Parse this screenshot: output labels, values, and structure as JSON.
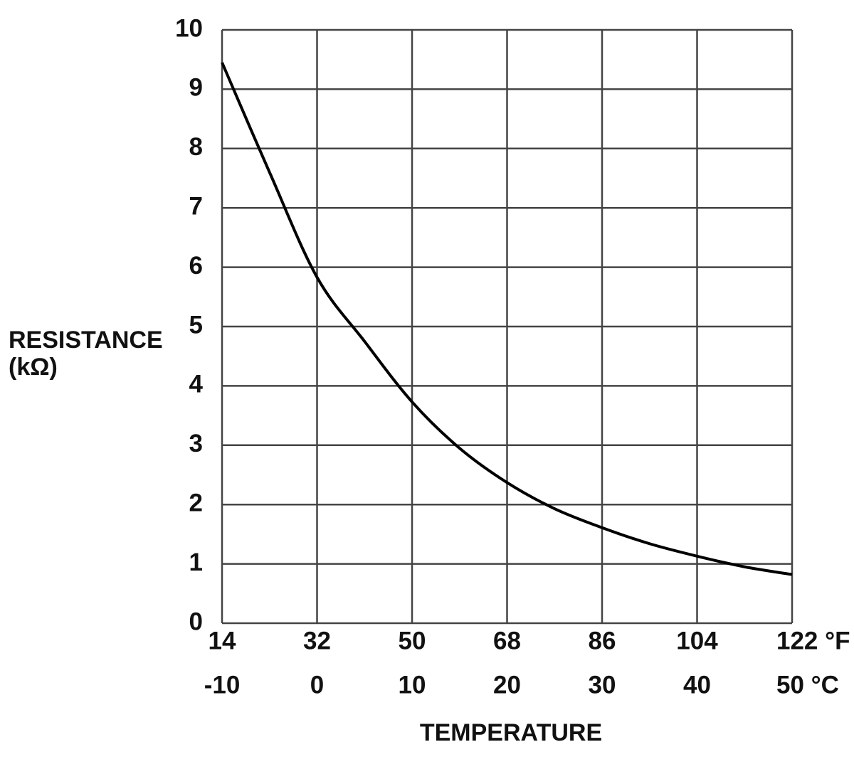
{
  "chart_data": {
    "type": "line",
    "ylabel": "RESISTANCE",
    "ylabel_unit": "(kΩ)",
    "xlabel": "TEMPERATURE",
    "x": [
      -10,
      -5,
      0,
      5,
      10,
      15,
      20,
      25,
      30,
      35,
      40,
      45,
      50
    ],
    "series": [
      {
        "color": "#000000",
        "values": [
          9.45,
          7.6,
          5.83,
          4.75,
          3.73,
          2.95,
          2.37,
          1.93,
          1.61,
          1.34,
          1.13,
          0.95,
          0.82
        ]
      }
    ],
    "xlim": [
      -10,
      50
    ],
    "xticks": [
      -10,
      0,
      10,
      20,
      30,
      40,
      {
        "value": 50,
        "label": "50 °C"
      }
    ],
    "x2lim": [
      14,
      122
    ],
    "x2ticks": [
      14,
      32,
      50,
      68,
      86,
      104,
      {
        "value": 122,
        "label": "122 °F"
      }
    ],
    "ylim": [
      0,
      10
    ],
    "yticks": [
      0,
      1,
      2,
      3,
      4,
      5,
      6,
      7,
      8,
      9,
      10
    ],
    "grid": true
  }
}
